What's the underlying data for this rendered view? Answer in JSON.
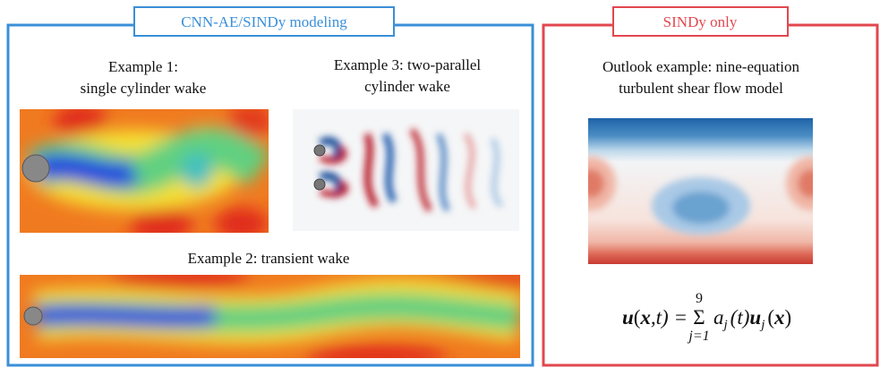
{
  "left_panel": {
    "title": "CNN-AE/SINDy modeling",
    "example_1": [
      "Example 1:",
      "single cylinder wake"
    ],
    "example_3": [
      "Example 3: two-parallel",
      "cylinder wake"
    ],
    "example_2": [
      "Example 2: transient wake"
    ]
  },
  "right_panel": {
    "title": "SINDy only",
    "outlook": [
      "Outlook example: nine-equation",
      "turbulent shear flow model"
    ],
    "equation": {
      "lhs": [
        "u",
        "(",
        "x",
        ",t) ="
      ],
      "sum": {
        "symbol": "Σ",
        "upper": "9",
        "lower": "j=1"
      },
      "rhs": [
        "a",
        "j",
        "(t)",
        "u",
        "j",
        "(",
        "x",
        ")"
      ]
    }
  }
}
